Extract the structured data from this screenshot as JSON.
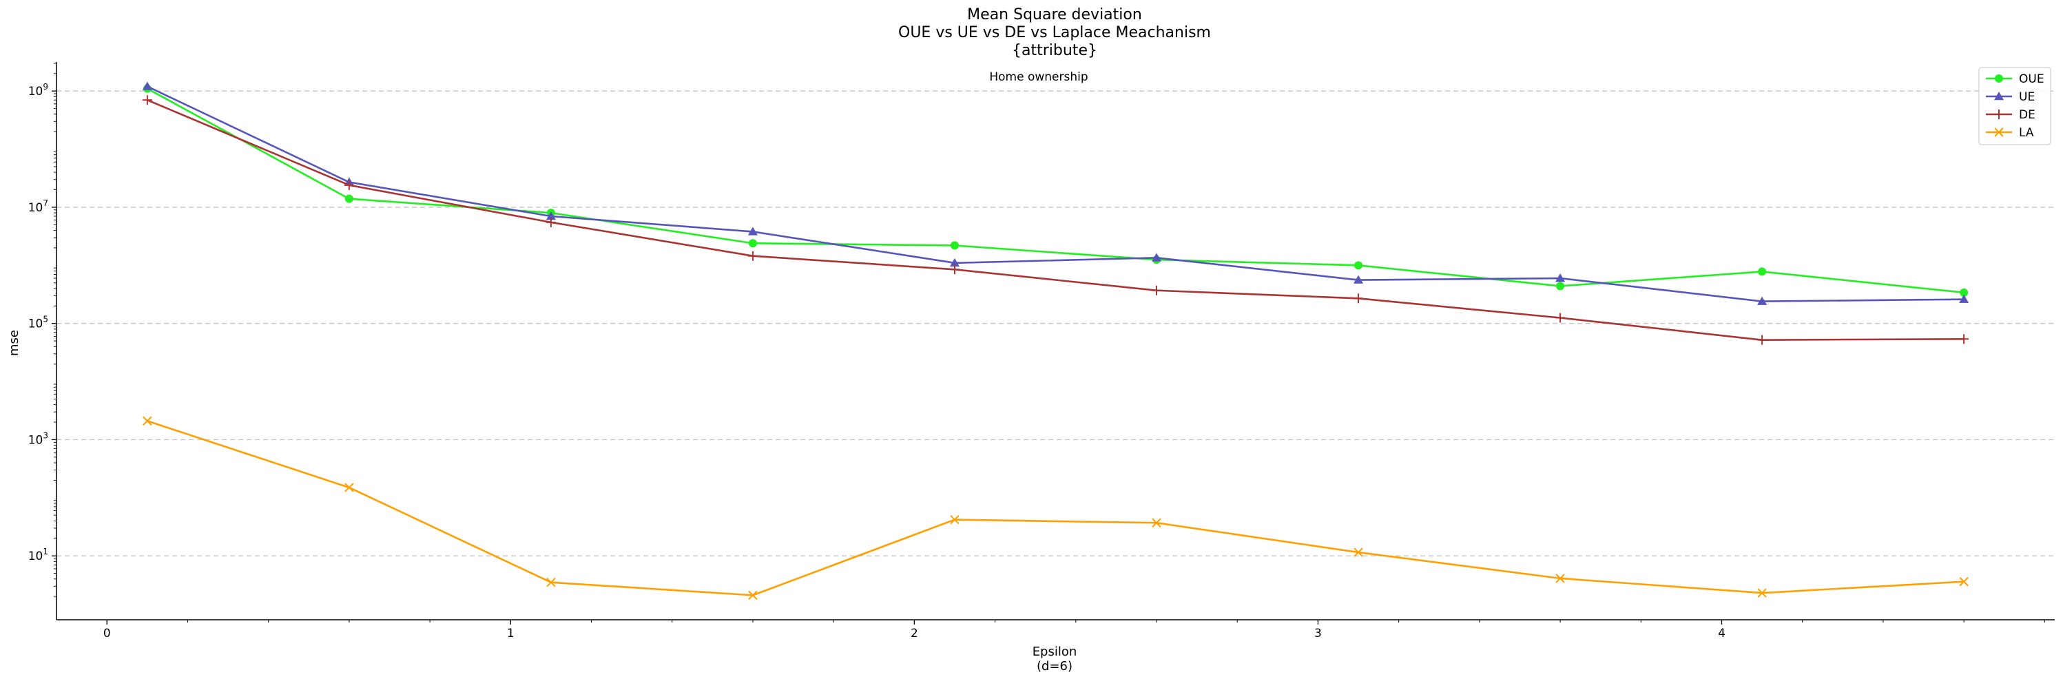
{
  "chart_data": {
    "type": "line",
    "title_lines": [
      "Mean Square deviation",
      "OUE vs UE vs DE vs Laplace Meachanism",
      "{attribute}"
    ],
    "subtitle": "Home ownership",
    "xlabel_lines": [
      "Epsilon",
      "(d=6)"
    ],
    "ylabel": "mse",
    "yscale": "log",
    "xlim": [
      -0.125,
      4.825
    ],
    "ylim_log10": [
      -0.1,
      9.5
    ],
    "x_ticks": [
      0,
      1,
      2,
      3,
      4
    ],
    "y_ticks_exp": [
      1,
      3,
      5,
      7,
      9
    ],
    "grid": "horizontal-dashed",
    "legend_position": "top-right",
    "x": [
      0.1,
      0.6,
      1.1,
      1.6,
      2.1,
      2.6,
      3.1,
      3.6,
      4.1,
      4.6
    ],
    "series": [
      {
        "name": "OUE",
        "color": "#22ee22",
        "marker": "circle",
        "values": [
          1100000000,
          14000000,
          8000000,
          2400000,
          2200000,
          1250000,
          1000000,
          440000,
          780000,
          340000
        ]
      },
      {
        "name": "UE",
        "color": "#5555bb",
        "marker": "triangle",
        "values": [
          1200000000,
          27000000,
          7000000,
          3800000,
          1100000,
          1350000,
          560000,
          600000,
          240000,
          260000
        ]
      },
      {
        "name": "DE",
        "color": "#aa3333",
        "marker": "plus",
        "values": [
          700000000,
          24000000,
          5500000,
          1450000,
          850000,
          370000,
          270000,
          125000,
          52000,
          54000
        ]
      },
      {
        "name": "LA",
        "color": "#ffa000",
        "marker": "x",
        "values": [
          2100,
          150,
          3.5,
          2.1,
          42,
          37,
          11.5,
          4.1,
          2.3,
          3.6
        ]
      }
    ]
  }
}
